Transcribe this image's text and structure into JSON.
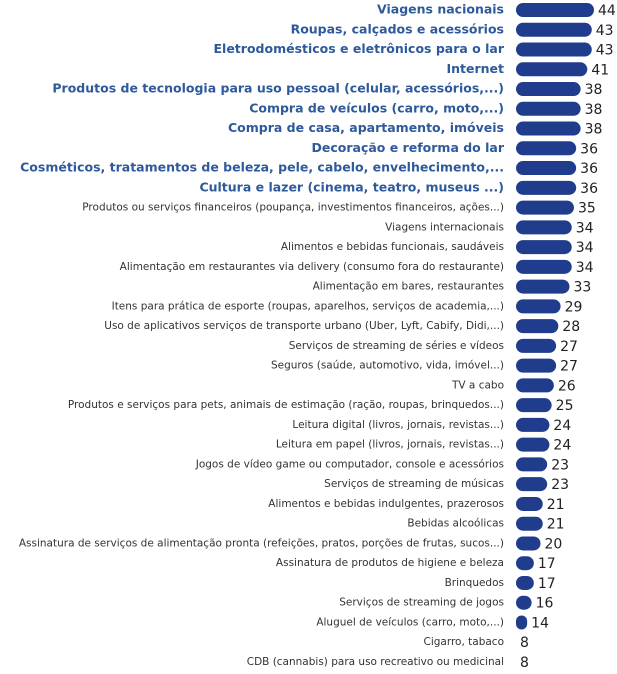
{
  "chart_data": {
    "type": "bar",
    "orientation": "horizontal",
    "categories": [
      "Viagens nacionais",
      "Roupas, calçados e acessórios",
      "Eletrodomésticos e eletrônicos para o lar",
      "Internet",
      "Produtos de tecnologia para uso pessoal (celular, acessórios,...)",
      "Compra de veículos (carro, moto,...)",
      "Compra de casa, apartamento, imóveis",
      "Decoração e reforma do lar",
      "Cosméticos, tratamentos de beleza, pele, cabelo, envelhecimento,...",
      "Cultura e lazer (cinema, teatro, museus ...)",
      "Produtos ou serviços financeiros (poupança, investimentos financeiros, ações...)",
      "Viagens internacionais",
      "Alimentos e bebidas funcionais, saudáveis",
      "Alimentação em restaurantes via delivery (consumo fora do restaurante)",
      "Alimentação em bares, restaurantes",
      "Itens para prática de esporte (roupas, aparelhos, serviços de academia,...)",
      "Uso de aplicativos serviços de transporte urbano (Uber, Lyft, Cabify, Didi,...)",
      "Serviços de streaming de séries e vídeos",
      "Seguros (saúde, automotivo, vida, imóvel...)",
      "TV a cabo",
      "Produtos e serviços para pets, animais de estimação (ração, roupas, brinquedos...)",
      "Leitura digital (livros, jornais, revistas...)",
      "Leitura em papel (livros, jornais, revistas...)",
      "Jogos de vídeo game ou computador, console e acessórios",
      "Serviços de streaming de músicas",
      "Alimentos e bebidas indulgentes, prazerosos",
      "Bebidas alcoólicas",
      "Assinatura de serviços de alimentação pronta (refeições, pratos, porções de frutas, sucos...)",
      "Assinatura de produtos de higiene e beleza",
      "Brinquedos",
      "Serviços de streaming de jogos",
      "Aluguel de veículos (carro, moto,...)",
      "Cigarro, tabaco",
      "CDB (cannabis) para uso recreativo ou medicinal"
    ],
    "values": [
      44,
      43,
      43,
      41,
      38,
      38,
      38,
      36,
      36,
      36,
      35,
      34,
      34,
      34,
      33,
      29,
      28,
      27,
      27,
      26,
      25,
      24,
      24,
      23,
      23,
      21,
      21,
      20,
      17,
      17,
      16,
      14,
      8,
      8
    ],
    "color": "#1f3d8c",
    "xlim": [
      9,
      44
    ],
    "highlight_count": 10,
    "highlight_color": "#2e5a9c",
    "text_color": "#333333"
  }
}
